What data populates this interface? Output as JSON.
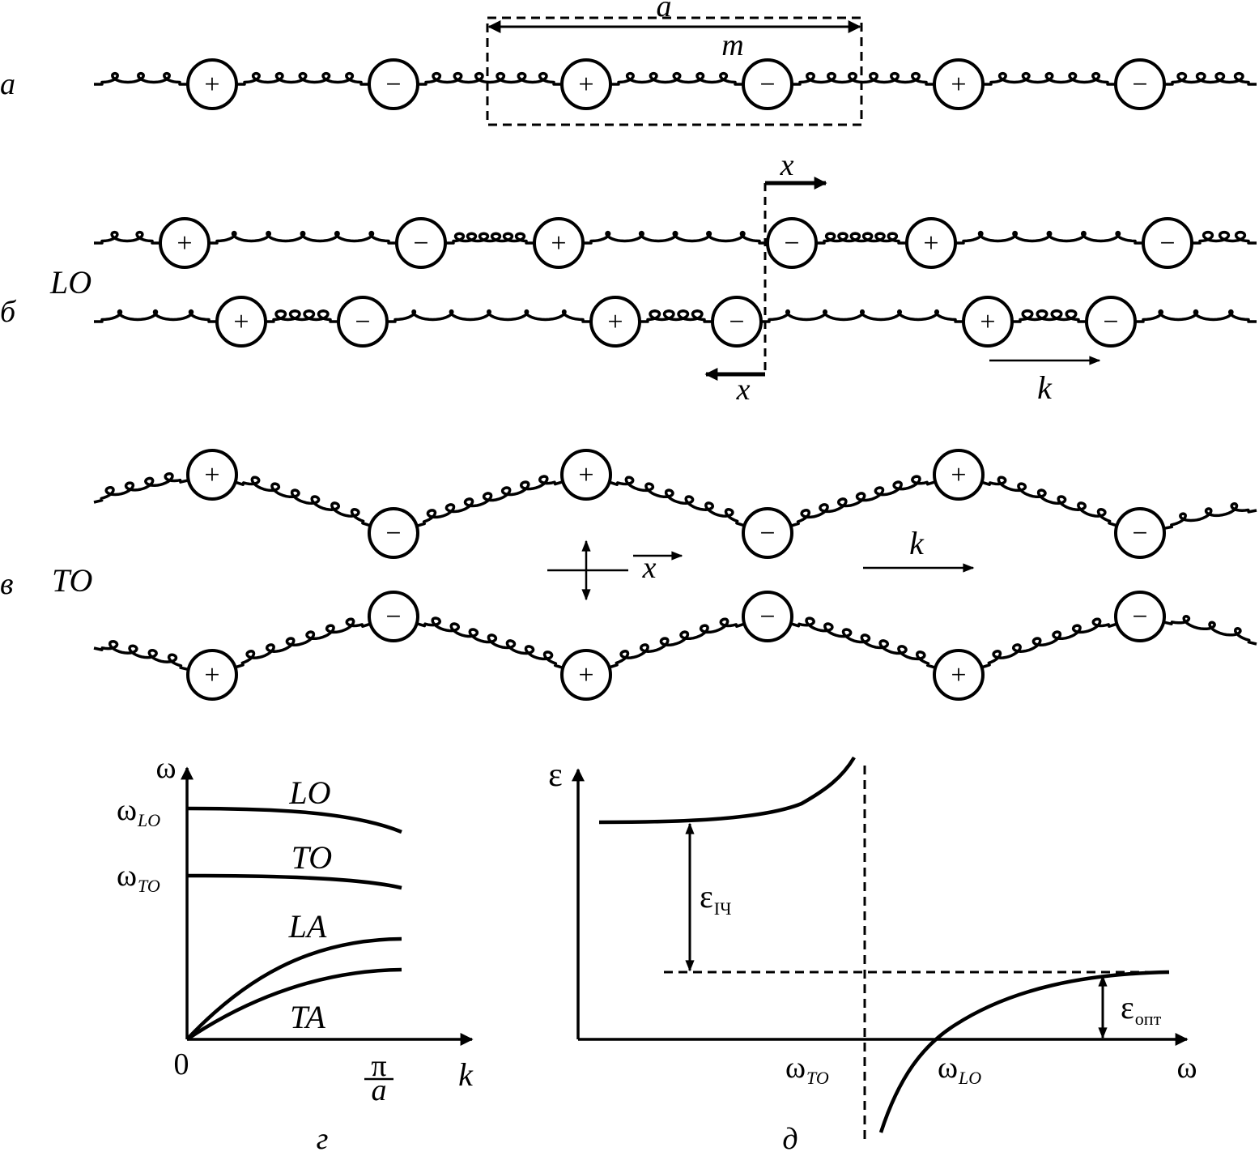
{
  "panels": {
    "a": {
      "letter": "а",
      "dim_label": "a",
      "mass_label": "m",
      "chain": [
        "+",
        "−",
        "+",
        "−",
        "+",
        "−"
      ]
    },
    "b": {
      "letter": "б",
      "mode_label": "LO",
      "x_upper": "x",
      "x_lower": "x",
      "k_label": "k",
      "chain_upper": [
        "+",
        "−",
        "+",
        "−",
        "+",
        "−"
      ],
      "chain_lower": [
        "+",
        "−",
        "+",
        "−",
        "+",
        "−"
      ]
    },
    "v": {
      "letter": "в",
      "mode_label": "TO",
      "x_label": "x",
      "k_label": "k",
      "chain_upper": [
        "+",
        "−",
        "+",
        "−",
        "+",
        "−"
      ],
      "chain_lower": [
        "+",
        "−",
        "+",
        "−",
        "+",
        "−"
      ]
    },
    "g": {
      "letter": "г",
      "y_axis": "ω",
      "x_axis": "k",
      "origin": "0",
      "x_tick_num": "π",
      "x_tick_den": "a",
      "y_tick_lo_main": "ω",
      "y_tick_lo_sub": "LO",
      "y_tick_to_main": "ω",
      "y_tick_to_sub": "TO",
      "branches": [
        "LO",
        "TO",
        "LA",
        "TA"
      ]
    },
    "d": {
      "letter": "д",
      "y_axis": "ε",
      "x_axis": "ω",
      "x_tick_to_main": "ω",
      "x_tick_to_sub": "TO",
      "x_tick_lo_main": "ω",
      "x_tick_lo_sub": "LO",
      "eps_ir_main": "ε",
      "eps_ir_sub": "ІЧ",
      "eps_opt_main": "ε",
      "eps_opt_sub": "опт"
    }
  },
  "colors": {
    "ink": "#000000",
    "paper": "#ffffff"
  }
}
